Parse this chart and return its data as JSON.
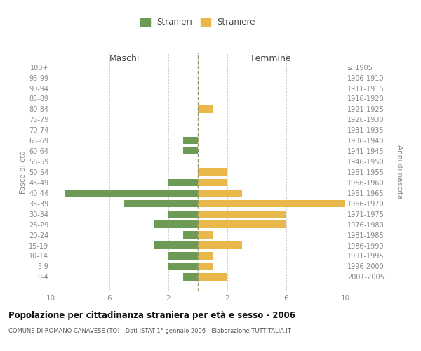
{
  "age_groups": [
    "100+",
    "95-99",
    "90-94",
    "85-89",
    "80-84",
    "75-79",
    "70-74",
    "65-69",
    "60-64",
    "55-59",
    "50-54",
    "45-49",
    "40-44",
    "35-39",
    "30-34",
    "25-29",
    "20-24",
    "15-19",
    "10-14",
    "5-9",
    "0-4"
  ],
  "birth_years": [
    "≤ 1905",
    "1906-1910",
    "1911-1915",
    "1916-1920",
    "1921-1925",
    "1926-1930",
    "1931-1935",
    "1936-1940",
    "1941-1945",
    "1946-1950",
    "1951-1955",
    "1956-1960",
    "1961-1965",
    "1966-1970",
    "1971-1975",
    "1976-1980",
    "1981-1985",
    "1986-1990",
    "1991-1995",
    "1996-2000",
    "2001-2005"
  ],
  "maschi": [
    0,
    0,
    0,
    0,
    0,
    0,
    0,
    1,
    1,
    0,
    0,
    2,
    9,
    5,
    2,
    3,
    1,
    3,
    2,
    2,
    1
  ],
  "femmine": [
    0,
    0,
    0,
    0,
    1,
    0,
    0,
    0,
    0,
    0,
    2,
    2,
    3,
    10,
    6,
    6,
    1,
    3,
    1,
    1,
    2
  ],
  "color_maschi": "#6d9b56",
  "color_femmine": "#e8b84b",
  "title_main": "Popolazione per cittadinanza straniera per età e sesso - 2006",
  "title_sub": "COMUNE DI ROMANO CANAVESE (TO) - Dati ISTAT 1° gennaio 2006 - Elaborazione TUTTITALIA.IT",
  "xlabel_left": "Maschi",
  "xlabel_right": "Femmine",
  "ylabel_left": "Fasce di età",
  "ylabel_right": "Anni di nascita",
  "legend_maschi": "Stranieri",
  "legend_femmine": "Straniere",
  "xlim": 10,
  "background_color": "#ffffff",
  "grid_color": "#cccccc",
  "bar_height": 0.7
}
